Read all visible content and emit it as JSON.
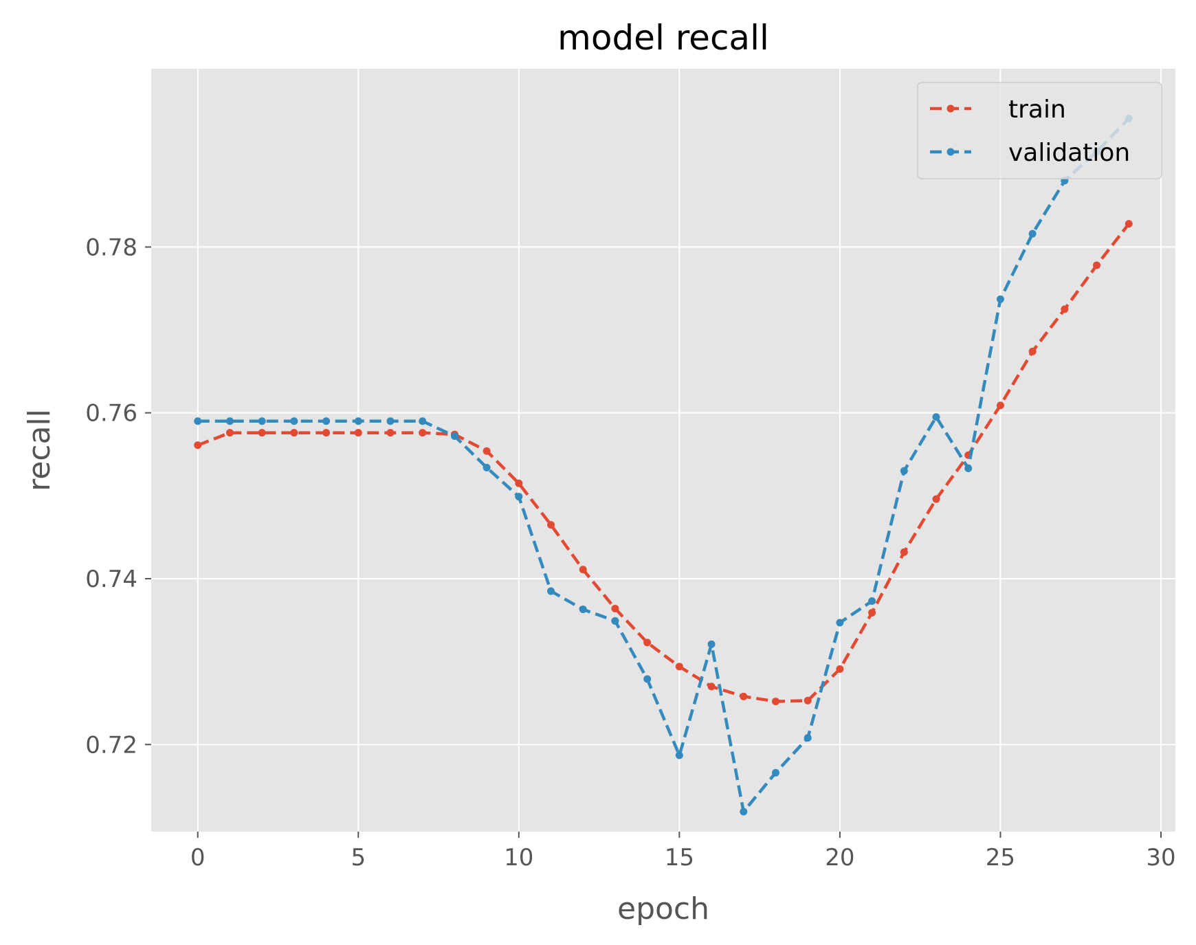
{
  "chart_data": {
    "type": "line",
    "title": "model recall",
    "xlabel": "epoch",
    "ylabel": "recall",
    "xlim": [
      -1.45,
      30.45
    ],
    "ylim": [
      0.7095,
      0.8015
    ],
    "xticks": [
      0,
      5,
      10,
      15,
      20,
      25,
      30
    ],
    "yticks": [
      0.72,
      0.74,
      0.76,
      0.78
    ],
    "xtick_labels": [
      "0",
      "5",
      "10",
      "15",
      "20",
      "25",
      "30"
    ],
    "ytick_labels": [
      "0.72",
      "0.74",
      "0.76",
      "0.78"
    ],
    "grid": true,
    "legend_position": "upper right",
    "style": "ggplot",
    "x": [
      0,
      1,
      2,
      3,
      4,
      5,
      6,
      7,
      8,
      9,
      10,
      11,
      12,
      13,
      14,
      15,
      16,
      17,
      18,
      19,
      20,
      21,
      22,
      23,
      24,
      25,
      26,
      27,
      28,
      29
    ],
    "series": [
      {
        "name": "train",
        "color": "#E24A33",
        "values": [
          0.7561,
          0.7576,
          0.7576,
          0.7576,
          0.7576,
          0.7576,
          0.7576,
          0.7576,
          0.7574,
          0.7554,
          0.7515,
          0.7465,
          0.7411,
          0.7364,
          0.7323,
          0.7294,
          0.727,
          0.7258,
          0.7252,
          0.7253,
          0.7291,
          0.7359,
          0.7432,
          0.7496,
          0.7549,
          0.7609,
          0.7674,
          0.7725,
          0.7778,
          0.7828
        ]
      },
      {
        "name": "validation",
        "color": "#348ABD",
        "values": [
          0.759,
          0.759,
          0.759,
          0.759,
          0.759,
          0.759,
          0.759,
          0.759,
          0.7572,
          0.7534,
          0.7499,
          0.7385,
          0.7363,
          0.7349,
          0.7279,
          0.7187,
          0.7321,
          0.7119,
          0.7166,
          0.7208,
          0.7347,
          0.7373,
          0.753,
          0.7595,
          0.7533,
          0.7737,
          0.7816,
          0.788,
          0.7915,
          0.7955
        ]
      }
    ]
  }
}
